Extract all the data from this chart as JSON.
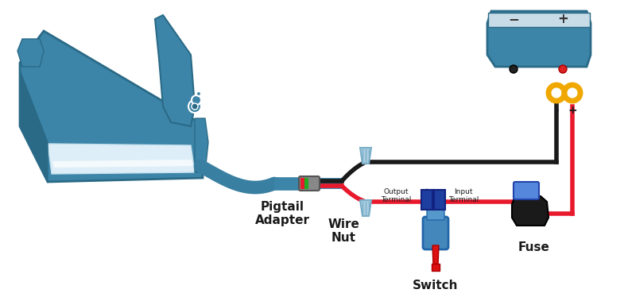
{
  "bg_color": "#ffffff",
  "teal": "#3d85a8",
  "teal_dark": "#2a6a87",
  "teal_light": "#c5e0ee",
  "teal_mid": "#4a90b8",
  "red_wire": "#e8192c",
  "black_wire": "#1a1a1a",
  "gold": "#f0a800",
  "blue_dark": "#1e3fa0",
  "blue_light": "#5588cc",
  "fuse_black": "#1a1a1a",
  "wire_nut_light": "#a8cce0",
  "wire_nut_mid": "#7aaec8",
  "labels": {
    "pigtail": "Pigtail\nAdapter",
    "wire_nut": "Wire\nNut",
    "switch": "Switch",
    "fuse": "Fuse",
    "output_terminal": "Output\nTerminal",
    "input_terminal": "Input\nTerminal",
    "minus": "-",
    "plus": "+"
  }
}
